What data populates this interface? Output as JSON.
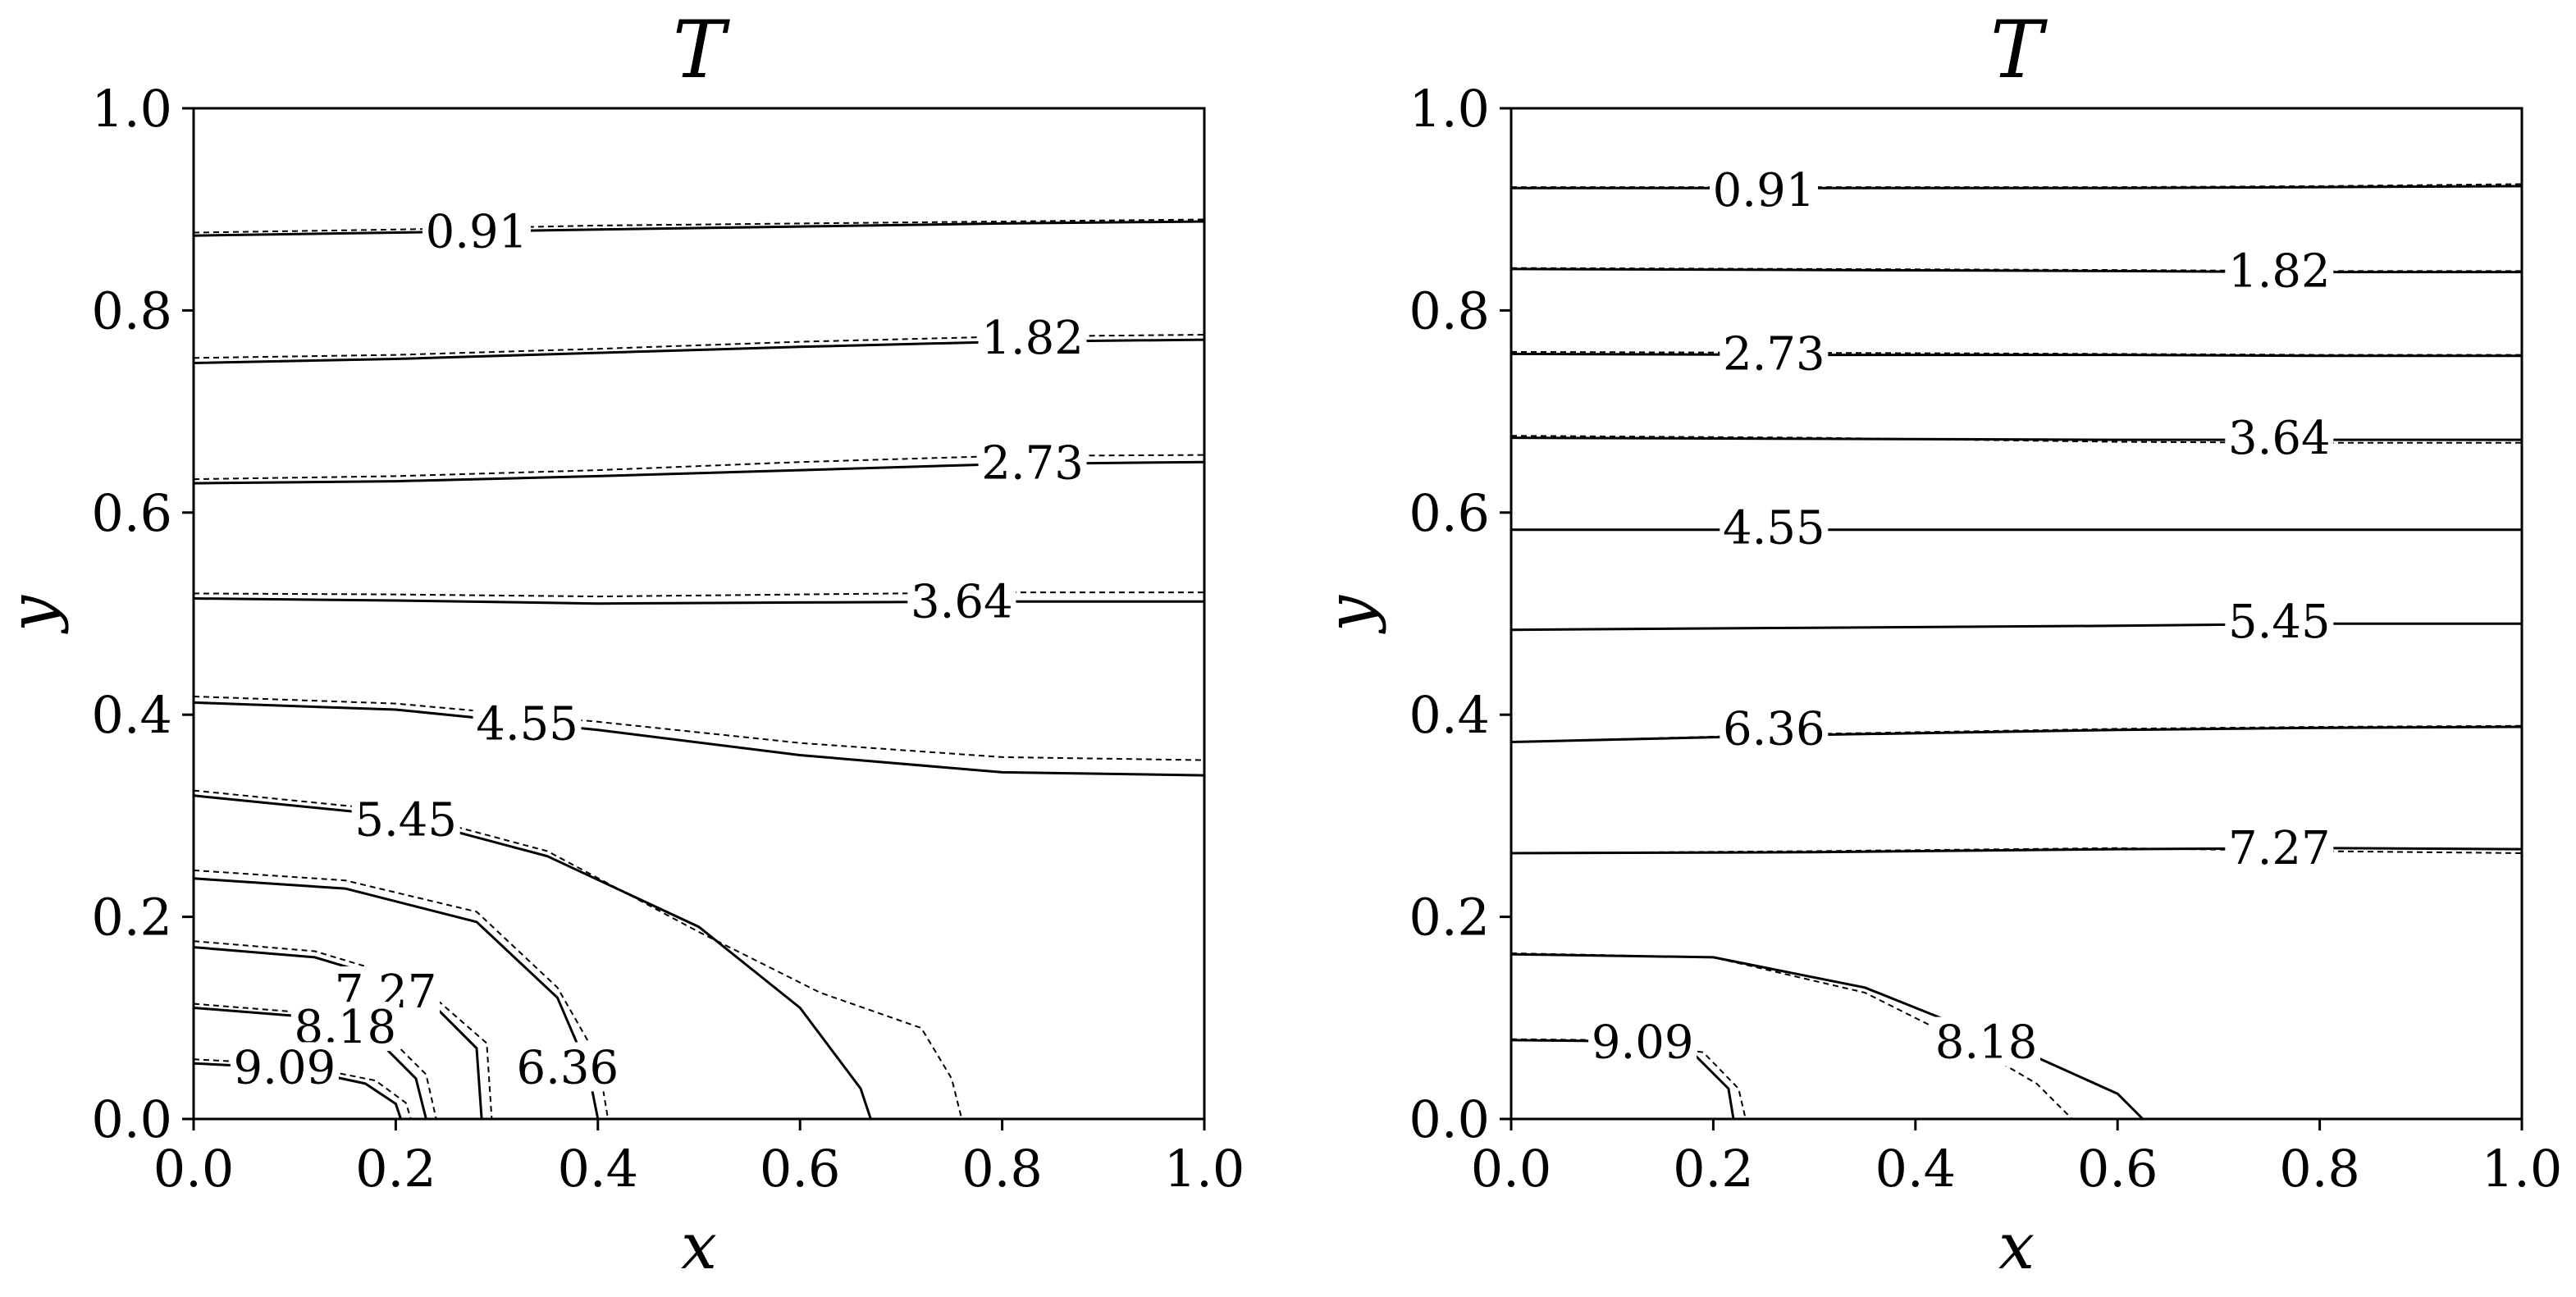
{
  "chart_data": [
    {
      "type": "contour",
      "title": "T",
      "xlabel": "x",
      "ylabel": "y",
      "xlim": [
        0,
        1
      ],
      "ylim": [
        0,
        1
      ],
      "xticks": [
        "0.0",
        "0.2",
        "0.4",
        "0.6",
        "0.8",
        "1.0"
      ],
      "yticks": [
        "0.0",
        "0.2",
        "0.4",
        "0.6",
        "0.8",
        "1.0"
      ],
      "levels": [
        {
          "label": "0.91",
          "solid": [
            [
              0,
              0.874
            ],
            [
              0.2,
              0.877
            ],
            [
              0.4,
              0.88
            ],
            [
              0.6,
              0.883
            ],
            [
              0.8,
              0.886
            ],
            [
              1,
              0.888
            ]
          ],
          "dashed": [
            [
              0,
              0.877
            ],
            [
              0.2,
              0.88
            ],
            [
              0.4,
              0.884
            ],
            [
              0.6,
              0.886
            ],
            [
              0.8,
              0.888
            ],
            [
              1,
              0.89
            ]
          ],
          "label_at": [
            0.28,
            0.877
          ]
        },
        {
          "label": "1.82",
          "solid": [
            [
              0,
              0.748
            ],
            [
              0.2,
              0.752
            ],
            [
              0.4,
              0.758
            ],
            [
              0.6,
              0.764
            ],
            [
              0.8,
              0.769
            ],
            [
              1,
              0.771
            ]
          ],
          "dashed": [
            [
              0,
              0.753
            ],
            [
              0.2,
              0.756
            ],
            [
              0.4,
              0.762
            ],
            [
              0.6,
              0.769
            ],
            [
              0.8,
              0.774
            ],
            [
              1,
              0.776
            ]
          ],
          "label_at": [
            0.83,
            0.772
          ]
        },
        {
          "label": "2.73",
          "solid": [
            [
              0,
              0.629
            ],
            [
              0.2,
              0.631
            ],
            [
              0.4,
              0.636
            ],
            [
              0.6,
              0.642
            ],
            [
              0.8,
              0.648
            ],
            [
              1,
              0.65
            ]
          ],
          "dashed": [
            [
              0,
              0.633
            ],
            [
              0.2,
              0.636
            ],
            [
              0.4,
              0.642
            ],
            [
              0.6,
              0.65
            ],
            [
              0.8,
              0.656
            ],
            [
              1,
              0.657
            ]
          ],
          "label_at": [
            0.83,
            0.648
          ]
        },
        {
          "label": "3.64",
          "solid": [
            [
              0,
              0.515
            ],
            [
              0.2,
              0.513
            ],
            [
              0.4,
              0.51
            ],
            [
              0.6,
              0.511
            ],
            [
              0.8,
              0.512
            ],
            [
              1,
              0.512
            ]
          ],
          "dashed": [
            [
              0,
              0.52
            ],
            [
              0.2,
              0.519
            ],
            [
              0.4,
              0.517
            ],
            [
              0.6,
              0.519
            ],
            [
              0.8,
              0.521
            ],
            [
              1,
              0.521
            ]
          ],
          "label_at": [
            0.76,
            0.511
          ]
        },
        {
          "label": "4.55",
          "solid": [
            [
              0,
              0.412
            ],
            [
              0.2,
              0.405
            ],
            [
              0.4,
              0.385
            ],
            [
              0.6,
              0.36
            ],
            [
              0.8,
              0.343
            ],
            [
              1,
              0.34
            ]
          ],
          "dashed": [
            [
              0,
              0.418
            ],
            [
              0.2,
              0.411
            ],
            [
              0.4,
              0.393
            ],
            [
              0.6,
              0.372
            ],
            [
              0.8,
              0.358
            ],
            [
              1,
              0.355
            ]
          ],
          "label_at": [
            0.33,
            0.39
          ]
        },
        {
          "label": "5.45",
          "solid": [
            [
              0,
              0.32
            ],
            [
              0.2,
              0.3
            ],
            [
              0.35,
              0.26
            ],
            [
              0.5,
              0.19
            ],
            [
              0.6,
              0.11
            ],
            [
              0.66,
              0.03
            ],
            [
              0.67,
              0
            ]
          ],
          "dashed": [
            [
              0,
              0.325
            ],
            [
              0.2,
              0.305
            ],
            [
              0.35,
              0.265
            ],
            [
              0.5,
              0.185
            ],
            [
              0.62,
              0.125
            ],
            [
              0.72,
              0.09
            ],
            [
              0.75,
              0.04
            ],
            [
              0.76,
              0
            ]
          ],
          "label_at": [
            0.21,
            0.295
          ]
        },
        {
          "label": "6.36",
          "solid": [
            [
              0,
              0.238
            ],
            [
              0.15,
              0.228
            ],
            [
              0.28,
              0.195
            ],
            [
              0.36,
              0.12
            ],
            [
              0.39,
              0.05
            ],
            [
              0.4,
              0
            ]
          ],
          "dashed": [
            [
              0,
              0.246
            ],
            [
              0.15,
              0.236
            ],
            [
              0.28,
              0.205
            ],
            [
              0.36,
              0.13
            ],
            [
              0.4,
              0.06
            ],
            [
              0.41,
              0
            ]
          ],
          "label_at": [
            0.37,
            0.05
          ]
        },
        {
          "label": "7.27",
          "solid": [
            [
              0,
              0.17
            ],
            [
              0.12,
              0.16
            ],
            [
              0.22,
              0.13
            ],
            [
              0.28,
              0.07
            ],
            [
              0.285,
              0
            ]
          ],
          "dashed": [
            [
              0,
              0.176
            ],
            [
              0.12,
              0.166
            ],
            [
              0.22,
              0.136
            ],
            [
              0.29,
              0.075
            ],
            [
              0.295,
              0
            ]
          ],
          "label_at": [
            0.19,
            0.125
          ]
        },
        {
          "label": "8.18",
          "solid": [
            [
              0,
              0.11
            ],
            [
              0.1,
              0.102
            ],
            [
              0.18,
              0.08
            ],
            [
              0.22,
              0.04
            ],
            [
              0.23,
              0
            ]
          ],
          "dashed": [
            [
              0,
              0.114
            ],
            [
              0.1,
              0.106
            ],
            [
              0.19,
              0.084
            ],
            [
              0.23,
              0.044
            ],
            [
              0.24,
              0
            ]
          ],
          "label_at": [
            0.15,
            0.09
          ]
        },
        {
          "label": "9.09",
          "solid": [
            [
              0,
              0.055
            ],
            [
              0.1,
              0.05
            ],
            [
              0.17,
              0.035
            ],
            [
              0.2,
              0.015
            ],
            [
              0.205,
              0
            ]
          ],
          "dashed": [
            [
              0,
              0.059
            ],
            [
              0.1,
              0.054
            ],
            [
              0.18,
              0.038
            ],
            [
              0.21,
              0.016
            ],
            [
              0.215,
              0
            ]
          ],
          "label_at": [
            0.09,
            0.05
          ]
        }
      ]
    },
    {
      "type": "contour",
      "title": "T",
      "xlabel": "x",
      "ylabel": "y",
      "xlim": [
        0,
        1
      ],
      "ylim": [
        0,
        1
      ],
      "xticks": [
        "0.0",
        "0.2",
        "0.4",
        "0.6",
        "0.8",
        "1.0"
      ],
      "yticks": [
        "0.0",
        "0.2",
        "0.4",
        "0.6",
        "0.8",
        "1.0"
      ],
      "levels": [
        {
          "label": "0.91",
          "solid": [
            [
              0,
              0.921
            ],
            [
              0.3,
              0.921
            ],
            [
              0.6,
              0.921
            ],
            [
              0.8,
              0.922
            ],
            [
              1,
              0.923
            ]
          ],
          "dashed": [
            [
              0,
              0.922
            ],
            [
              0.3,
              0.922
            ],
            [
              0.6,
              0.922
            ],
            [
              0.8,
              0.923
            ],
            [
              1,
              0.925
            ]
          ],
          "label_at": [
            0.25,
            0.918
          ]
        },
        {
          "label": "1.82",
          "solid": [
            [
              0,
              0.841
            ],
            [
              0.3,
              0.84
            ],
            [
              0.6,
              0.839
            ],
            [
              0.8,
              0.838
            ],
            [
              1,
              0.838
            ]
          ],
          "dashed": [
            [
              0,
              0.842
            ],
            [
              0.3,
              0.841
            ],
            [
              0.6,
              0.84
            ],
            [
              0.8,
              0.839
            ],
            [
              1,
              0.839
            ]
          ],
          "label_at": [
            0.76,
            0.838
          ]
        },
        {
          "label": "2.73",
          "solid": [
            [
              0,
              0.757
            ],
            [
              0.3,
              0.756
            ],
            [
              0.6,
              0.756
            ],
            [
              0.8,
              0.755
            ],
            [
              1,
              0.755
            ]
          ],
          "dashed": [
            [
              0,
              0.759
            ],
            [
              0.3,
              0.758
            ],
            [
              0.6,
              0.757
            ],
            [
              0.8,
              0.756
            ],
            [
              1,
              0.756
            ]
          ],
          "label_at": [
            0.26,
            0.756
          ]
        },
        {
          "label": "3.64",
          "solid": [
            [
              0,
              0.674
            ],
            [
              0.3,
              0.673
            ],
            [
              0.6,
              0.672
            ],
            [
              0.8,
              0.672
            ],
            [
              1,
              0.672
            ]
          ],
          "dashed": [
            [
              0,
              0.676
            ],
            [
              0.3,
              0.674
            ],
            [
              0.6,
              0.67
            ],
            [
              0.8,
              0.669
            ],
            [
              1,
              0.669
            ]
          ],
          "label_at": [
            0.76,
            0.673
          ]
        },
        {
          "label": "4.55",
          "solid": [
            [
              0,
              0.583
            ],
            [
              0.3,
              0.583
            ],
            [
              0.6,
              0.583
            ],
            [
              0.8,
              0.583
            ],
            [
              1,
              0.583
            ]
          ],
          "dashed": [
            [
              0,
              0.583
            ],
            [
              0.3,
              0.583
            ],
            [
              0.6,
              0.583
            ],
            [
              0.8,
              0.583
            ],
            [
              1,
              0.583
            ]
          ],
          "label_at": [
            0.26,
            0.584
          ]
        },
        {
          "label": "5.45",
          "solid": [
            [
              0,
              0.484
            ],
            [
              0.3,
              0.486
            ],
            [
              0.6,
              0.488
            ],
            [
              0.8,
              0.49
            ],
            [
              1,
              0.49
            ]
          ],
          "dashed": [
            [
              0,
              0.484
            ],
            [
              0.3,
              0.486
            ],
            [
              0.6,
              0.488
            ],
            [
              0.8,
              0.49
            ],
            [
              1,
              0.49
            ]
          ],
          "label_at": [
            0.76,
            0.491
          ]
        },
        {
          "label": "6.36",
          "solid": [
            [
              0,
              0.373
            ],
            [
              0.3,
              0.38
            ],
            [
              0.6,
              0.385
            ],
            [
              0.8,
              0.387
            ],
            [
              1,
              0.388
            ]
          ],
          "dashed": [
            [
              0,
              0.373
            ],
            [
              0.3,
              0.381
            ],
            [
              0.6,
              0.386
            ],
            [
              0.8,
              0.388
            ],
            [
              1,
              0.389
            ]
          ],
          "label_at": [
            0.26,
            0.385
          ]
        },
        {
          "label": "7.27",
          "solid": [
            [
              0,
              0.263
            ],
            [
              0.3,
              0.264
            ],
            [
              0.6,
              0.267
            ],
            [
              0.8,
              0.268
            ],
            [
              1,
              0.267
            ]
          ],
          "dashed": [
            [
              0,
              0.263
            ],
            [
              0.3,
              0.265
            ],
            [
              0.6,
              0.268
            ],
            [
              0.8,
              0.265
            ],
            [
              1,
              0.263
            ]
          ],
          "label_at": [
            0.76,
            0.267
          ]
        },
        {
          "label": "8.18",
          "solid": [
            [
              0,
              0.163
            ],
            [
              0.2,
              0.16
            ],
            [
              0.35,
              0.13
            ],
            [
              0.5,
              0.07
            ],
            [
              0.6,
              0.025
            ],
            [
              0.625,
              0
            ]
          ],
          "dashed": [
            [
              0,
              0.164
            ],
            [
              0.2,
              0.16
            ],
            [
              0.35,
              0.125
            ],
            [
              0.46,
              0.07
            ],
            [
              0.52,
              0.035
            ],
            [
              0.555,
              0
            ]
          ],
          "label_at": [
            0.47,
            0.075
          ]
        },
        {
          "label": "9.09",
          "solid": [
            [
              0,
              0.078
            ],
            [
              0.1,
              0.077
            ],
            [
              0.18,
              0.065
            ],
            [
              0.215,
              0.03
            ],
            [
              0.22,
              0
            ]
          ],
          "dashed": [
            [
              0,
              0.079
            ],
            [
              0.1,
              0.078
            ],
            [
              0.19,
              0.066
            ],
            [
              0.225,
              0.03
            ],
            [
              0.232,
              0
            ]
          ],
          "label_at": [
            0.13,
            0.075
          ]
        }
      ]
    }
  ]
}
